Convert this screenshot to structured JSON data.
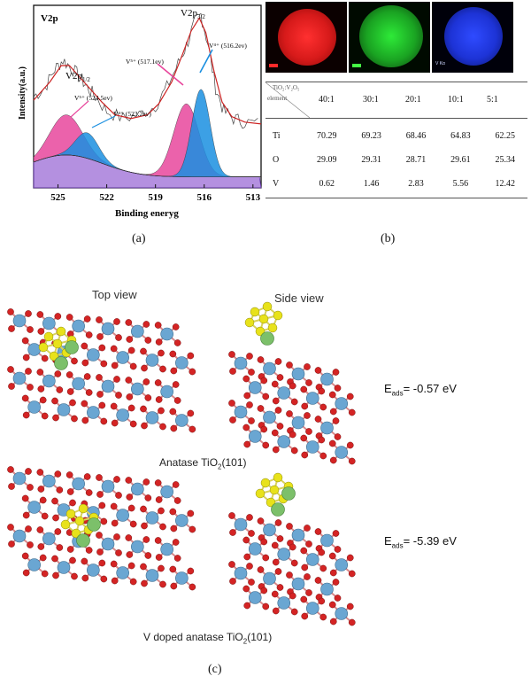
{
  "panel_a": {
    "label": "(a)",
    "corner_label": "V2p",
    "chart_data": {
      "type": "line",
      "title": "",
      "xlabel": "Binding eneryg",
      "ylabel": "Intensity(a.u.)",
      "x_ticks": [
        "525",
        "522",
        "519",
        "516",
        "513"
      ],
      "xlim": [
        526.5,
        512.5
      ],
      "peak_labels": {
        "v2p12": "V2p1/2",
        "v2p32": "V2p3/2",
        "v5_high": "V⁵⁺ (524.5ev)",
        "v4_high": "V⁴⁺ (523.2ev)",
        "v5_low": "V⁵⁺ (517.1ev)",
        "v4_low": "V⁴⁺ (516.2ev)"
      },
      "series": [
        {
          "role": "raw",
          "color": "#444444",
          "points": [
            [
              526.5,
              0.5
            ],
            [
              525.8,
              0.55
            ],
            [
              525.2,
              0.65
            ],
            [
              524.7,
              0.7
            ],
            [
              524.2,
              0.66
            ],
            [
              523.6,
              0.6
            ],
            [
              523.2,
              0.55
            ],
            [
              522.7,
              0.5
            ],
            [
              522.0,
              0.42
            ],
            [
              521.0,
              0.38
            ],
            [
              520.0,
              0.4
            ],
            [
              519.0,
              0.45
            ],
            [
              518.3,
              0.55
            ],
            [
              517.6,
              0.68
            ],
            [
              517.1,
              0.78
            ],
            [
              516.6,
              0.9
            ],
            [
              516.2,
              0.95
            ],
            [
              515.8,
              0.8
            ],
            [
              515.3,
              0.55
            ],
            [
              514.8,
              0.42
            ],
            [
              514.2,
              0.38
            ],
            [
              513.5,
              0.36
            ],
            [
              512.5,
              0.35
            ]
          ]
        },
        {
          "role": "fit",
          "color": "#cc2222",
          "points": [
            [
              526.5,
              0.48
            ],
            [
              525.5,
              0.58
            ],
            [
              524.8,
              0.67
            ],
            [
              524.3,
              0.67
            ],
            [
              523.6,
              0.6
            ],
            [
              523.0,
              0.54
            ],
            [
              522.3,
              0.47
            ],
            [
              521.5,
              0.4
            ],
            [
              520.5,
              0.38
            ],
            [
              519.5,
              0.4
            ],
            [
              518.8,
              0.46
            ],
            [
              518.0,
              0.58
            ],
            [
              517.3,
              0.74
            ],
            [
              516.8,
              0.86
            ],
            [
              516.3,
              0.93
            ],
            [
              515.9,
              0.85
            ],
            [
              515.4,
              0.64
            ],
            [
              514.9,
              0.47
            ],
            [
              514.3,
              0.39
            ],
            [
              513.5,
              0.36
            ],
            [
              512.5,
              0.35
            ]
          ]
        },
        {
          "role": "V5+ 524.5",
          "color": "#e8469c",
          "center": 524.5,
          "amp": 0.22,
          "width": 1.4
        },
        {
          "role": "V4+ 523.2",
          "color": "#1a8fe0",
          "center": 523.2,
          "amp": 0.14,
          "width": 1.0
        },
        {
          "role": "V5+ 517.1",
          "color": "#e8469c",
          "center": 517.1,
          "amp": 0.4,
          "width": 1.1
        },
        {
          "role": "V4+ 516.2",
          "color": "#1a8fe0",
          "center": 516.2,
          "amp": 0.48,
          "width": 0.8
        }
      ]
    }
  },
  "panel_b": {
    "label": "(b)",
    "maps": [
      {
        "name": "Ti",
        "color": "#e21a1a",
        "scale_color": "#ff2a2a"
      },
      {
        "name": "O",
        "color": "#1fbf2a",
        "scale_color": "#44ff44"
      },
      {
        "name": "V",
        "color": "#1d33d6",
        "scale_color": "#3a5aff",
        "corner_text": "V Kα"
      }
    ],
    "table": {
      "header_corner_top": "TiO₂:V₂O₅",
      "header_corner_bottom": "element",
      "ratios": [
        "40:1",
        "30:1",
        "20:1",
        "10:1",
        "5:1"
      ],
      "rows": [
        {
          "element": "Ti",
          "values": [
            "70.29",
            "69.23",
            "68.46",
            "64.83",
            "62.25"
          ]
        },
        {
          "element": "O",
          "values": [
            "29.09",
            "29.31",
            "28.71",
            "29.61",
            "25.34"
          ]
        },
        {
          "element": "V",
          "values": [
            "0.62",
            "1.46",
            "2.83",
            "5.56",
            "12.42"
          ]
        }
      ]
    }
  },
  "panel_c": {
    "label": "(c)",
    "top_view": "Top view",
    "side_view": "Side view",
    "row1_caption": "Anatase TiO₂(101)",
    "row1_energy": "Eads= -0.57 eV",
    "row2_caption": "V doped anatase TiO₂(101)",
    "row2_energy": "Eads= -5.39 eV",
    "colors": {
      "ti": "#6aa6d2",
      "o": "#d42424",
      "s": "#e8e21a",
      "v": "#7cc06a"
    }
  }
}
